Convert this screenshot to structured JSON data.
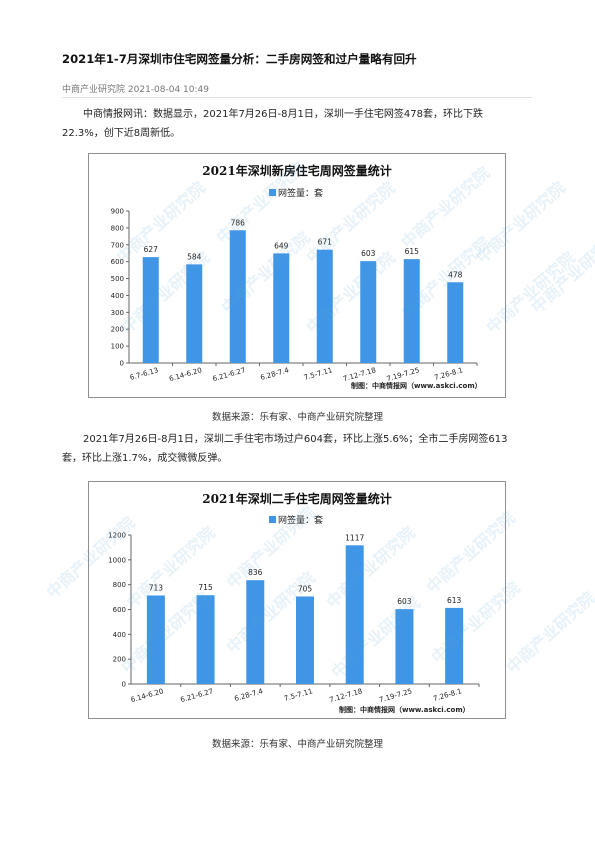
{
  "article": {
    "title": "2021年1-7月深圳市住宅网签量分析：二手房网签和过户量略有回升",
    "source": "中商产业研究院",
    "date": "2021-08-04 10:49",
    "para1_line1": "中商情报网讯：数据显示，2021年7月26日-8月1日，深圳一手住宅网签478套，环比下跌",
    "para1_line2": "22.3%，创下近8周新低。",
    "para2_line1": "2021年7月26日-8月1日，深圳二手住宅市场过户604套，环比上涨5.6%；全市二手房网签613",
    "para2_line2": "套，环比上涨1.7%，成交微微反弹。",
    "chart1_caption": "数据来源：乐有家、中商产业研究院整理",
    "chart2_caption": "数据来源：乐有家、中商产业研究院整理",
    "watermark": "中商产业研究院"
  },
  "chart_data": [
    {
      "type": "bar",
      "title": "2021年深圳新房住宅周网签量统计",
      "legend": "网签量：套",
      "credit": "制图：中商情报网（www.askci.com）",
      "categories": [
        "6.7-6.13",
        "6.14-6.20",
        "6.21-6.27",
        "6.28-7.4",
        "7.5-7.11",
        "7.12-7.18",
        "7.19-7.25",
        "7.26-8.1"
      ],
      "series": [
        {
          "name": "网签量：套",
          "values": [
            627,
            584,
            786,
            649,
            671,
            603,
            615,
            478
          ]
        }
      ],
      "ylim": [
        0,
        900
      ],
      "yticks": [
        0,
        100,
        200,
        300,
        400,
        500,
        600,
        700,
        800,
        900
      ],
      "bar_color": "#3f96e6",
      "grid": false,
      "legend_position": "top"
    },
    {
      "type": "bar",
      "title": "2021年深圳二手住宅周网签量统计",
      "legend": "网签量：套",
      "credit": "制图：中商情报网（www.askci.com）",
      "categories": [
        "6.14-6.20",
        "6.21-6.27",
        "6.28-7.4",
        "7.5-7.11",
        "7.12-7.18",
        "7.19-7.25",
        "7.26-8.1"
      ],
      "series": [
        {
          "name": "网签量：套",
          "values": [
            713,
            715,
            836,
            705,
            1117,
            603,
            613
          ]
        }
      ],
      "ylim": [
        0,
        1200
      ],
      "yticks": [
        0,
        200,
        400,
        600,
        800,
        1000,
        1200
      ],
      "bar_color": "#3f96e6",
      "grid": false,
      "legend_position": "top"
    }
  ]
}
